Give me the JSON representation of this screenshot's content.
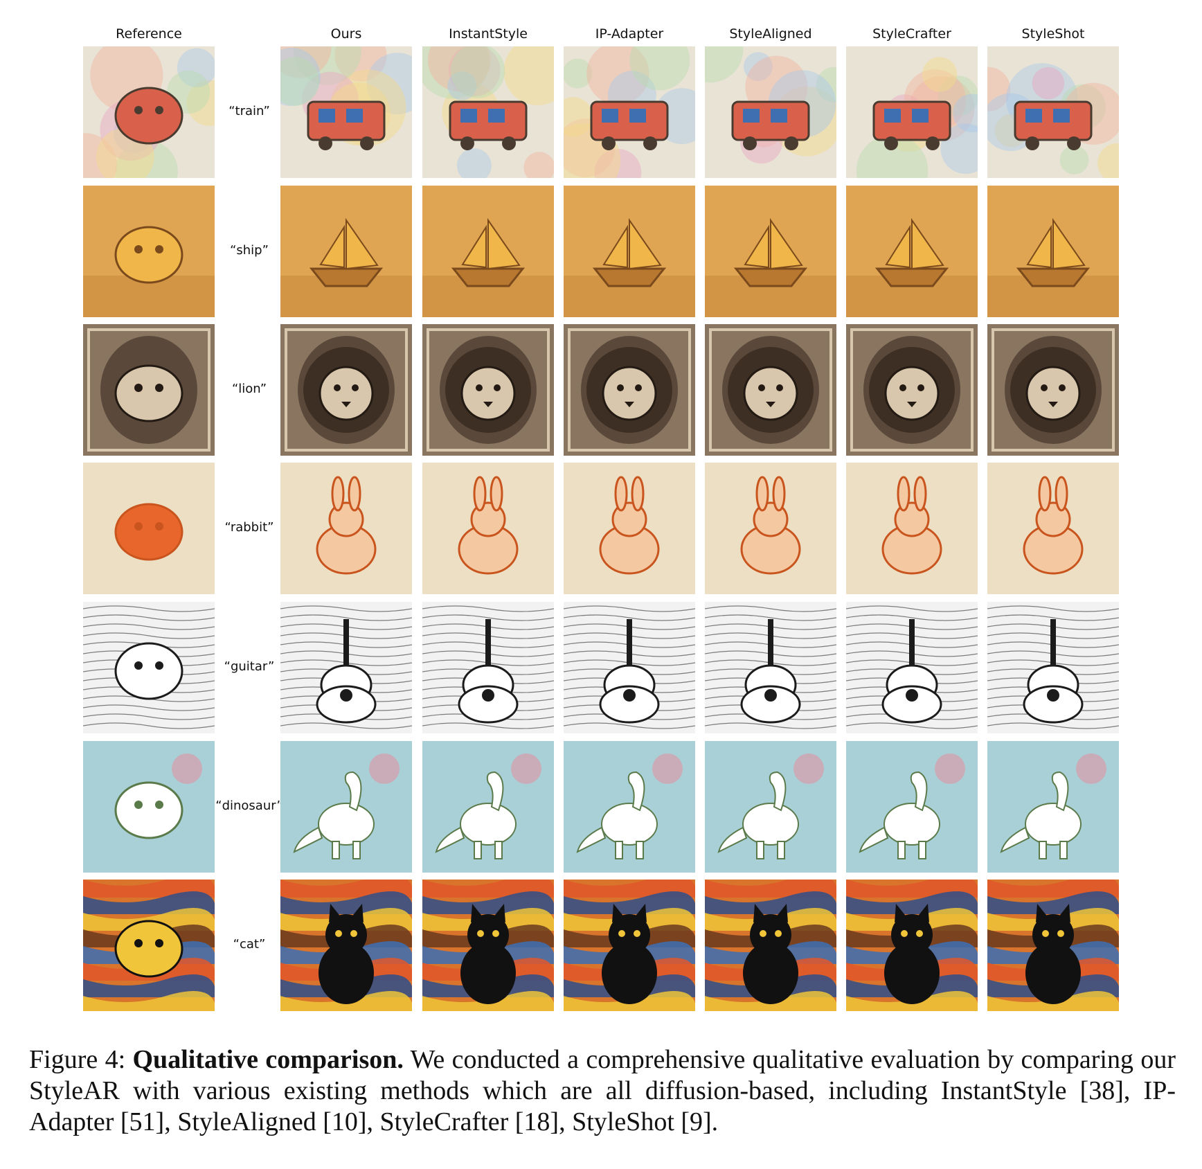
{
  "figure": {
    "columns": [
      "Reference",
      "Ours",
      "InstantStyle",
      "IP-Adapter",
      "StyleAligned",
      "StyleCrafter",
      "StyleShot"
    ],
    "prompts": [
      "“train”",
      "“ship”",
      "“lion”",
      "“rabbit”",
      "“guitar”",
      "“dinosaur”",
      "“cat”"
    ],
    "rows": [
      {
        "style": "watercolor",
        "bg": "#e9e3d6",
        "accent": "#d9604a",
        "accent2": "#3f6fb0",
        "ink": "#4a3b30"
      },
      {
        "style": "clay",
        "bg": "#e0a552",
        "accent": "#f0b64a",
        "accent2": "#b8782f",
        "ink": "#7a4a1c"
      },
      {
        "style": "engraving",
        "bg": "#8a7560",
        "accent": "#d8c7ad",
        "accent2": "#3a2c22",
        "ink": "#231a14"
      },
      {
        "style": "line-art",
        "bg": "#ecdfc4",
        "accent": "#e8662c",
        "accent2": "#f4c9a2",
        "ink": "#c9541d"
      },
      {
        "style": "doodle",
        "bg": "#f2f2f2",
        "accent": "#ffffff",
        "accent2": "#e3b23c",
        "ink": "#1b1b1b"
      },
      {
        "style": "pastel",
        "bg": "#a9d0d6",
        "accent": "#ffffff",
        "accent2": "#e58ea0",
        "ink": "#5a7a4a"
      },
      {
        "style": "expressionist",
        "bg": "#d8742b",
        "accent": "#f0c53a",
        "accent2": "#2f4f8a",
        "ink": "#111111"
      }
    ]
  },
  "caption": {
    "prefix": "Figure 4: ",
    "title": "Qualitative comparison.",
    "body": " We conducted a comprehensive qualitative evaluation by comparing our StyleAR with various existing methods which are all diffusion-based, including InstantStyle [38], IP-Adapter [51], StyleAligned [10], StyleCrafter [18], StyleShot [9]."
  }
}
